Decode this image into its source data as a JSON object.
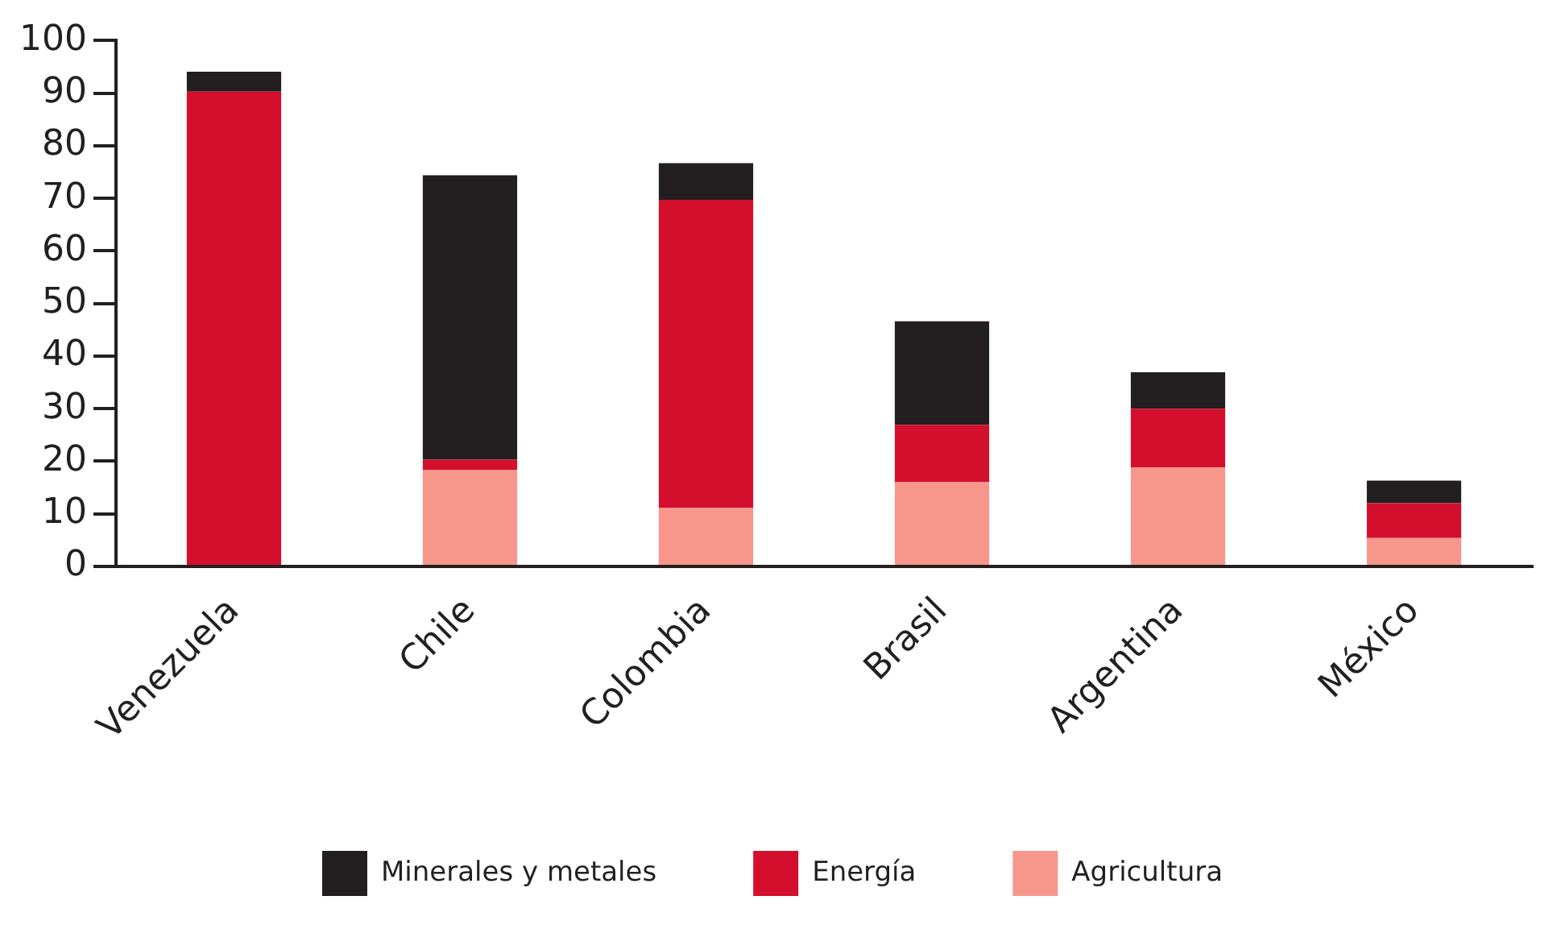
{
  "chart_data": {
    "type": "bar",
    "stacked": true,
    "categories": [
      "Venezuela",
      "Chile",
      "Colombia",
      "Brasil",
      "Argentina",
      "México"
    ],
    "series": [
      {
        "name": "Agricultura",
        "color": "#f7978c",
        "values": [
          0,
          18.3,
          11.1,
          16,
          18.8,
          5.4
        ]
      },
      {
        "name": "Energía",
        "color": "#d40e2d",
        "values": [
          90.3,
          2.0,
          58.6,
          10.9,
          11.2,
          6.6
        ]
      },
      {
        "name": "Minerales y metales",
        "color": "#231f20",
        "values": [
          3.8,
          54.1,
          7.0,
          19.7,
          6.9,
          4.3
        ]
      }
    ],
    "ylim": [
      0,
      100
    ],
    "yticks": [
      0,
      10,
      20,
      30,
      40,
      50,
      60,
      70,
      80,
      90,
      100
    ],
    "grid": false,
    "legend": "bottom"
  }
}
